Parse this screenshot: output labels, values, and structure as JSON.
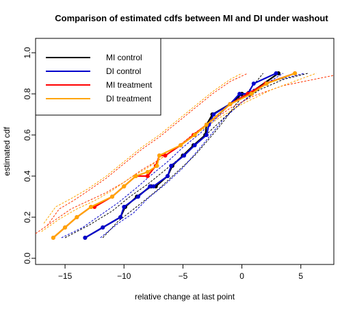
{
  "chart_data": {
    "type": "line",
    "title": "Comparison of estimated cdfs between MI and DI under washout",
    "xlabel": "relative change at last point",
    "ylabel": "estimated cdf",
    "xlim": [
      -17.5,
      7.8
    ],
    "ylim": [
      -0.03,
      1.07
    ],
    "xticks": [
      -15,
      -10,
      -5,
      0,
      5
    ],
    "xtick_labels": [
      "−15",
      "−10",
      "−5",
      "0",
      "5"
    ],
    "yticks": [
      0.0,
      0.2,
      0.4,
      0.6,
      0.8,
      1.0
    ],
    "ytick_labels": [
      "0.0",
      "0.2",
      "0.4",
      "0.6",
      "0.8",
      "1.0"
    ],
    "grid": false,
    "legend": "top-left",
    "series": [
      {
        "name": "MI control",
        "color": "#000000",
        "style": "solid-points",
        "x": [
          -13.3,
          -11.8,
          -10.3,
          -9.9,
          -8.9,
          -7.7,
          -7.3,
          -6.3,
          -5.9,
          -5.0,
          -4.1,
          -3.1,
          -3.0,
          -2.5,
          -1.0,
          0.0,
          0.6,
          3.1
        ],
        "y": [
          0.1,
          0.15,
          0.2,
          0.25,
          0.3,
          0.35,
          0.35,
          0.4,
          0.45,
          0.5,
          0.55,
          0.6,
          0.65,
          0.7,
          0.75,
          0.8,
          0.8,
          0.9
        ]
      },
      {
        "name": "DI control",
        "color": "#0000cc",
        "style": "solid-points",
        "x": [
          -13.3,
          -11.8,
          -10.3,
          -10.0,
          -8.8,
          -7.8,
          -7.5,
          -6.3,
          -6.0,
          -4.9,
          -4.0,
          -3.0,
          -2.8,
          -2.4,
          -1.0,
          -0.2,
          0.5,
          1.0,
          2.9
        ],
        "y": [
          0.1,
          0.15,
          0.2,
          0.25,
          0.3,
          0.35,
          0.35,
          0.4,
          0.45,
          0.5,
          0.55,
          0.6,
          0.65,
          0.7,
          0.75,
          0.8,
          0.8,
          0.85,
          0.9
        ]
      },
      {
        "name": "MI treatment",
        "color": "#ff0000",
        "style": "solid-points",
        "x": [
          -16.0,
          -15.0,
          -14.0,
          -12.8,
          -12.5,
          -11.0,
          -10.0,
          -9.0,
          -8.0,
          -7.3,
          -7.0,
          -6.5,
          -5.2,
          -4.1,
          -3.0,
          -1.0,
          0.5,
          2.0,
          4.5
        ],
        "y": [
          0.1,
          0.15,
          0.2,
          0.25,
          0.25,
          0.3,
          0.35,
          0.4,
          0.4,
          0.45,
          0.5,
          0.5,
          0.55,
          0.6,
          0.65,
          0.75,
          0.8,
          0.85,
          0.9
        ]
      },
      {
        "name": "DI treatment",
        "color": "#ffa500",
        "style": "solid-points",
        "x": [
          -16.0,
          -15.0,
          -14.0,
          -12.8,
          -11.0,
          -10.0,
          -9.0,
          -8.0,
          -7.2,
          -7.0,
          -5.2,
          -4.0,
          -3.0,
          -1.0,
          0.8,
          2.1,
          4.5
        ],
        "y": [
          0.1,
          0.15,
          0.2,
          0.25,
          0.3,
          0.35,
          0.4,
          0.42,
          0.45,
          0.5,
          0.55,
          0.6,
          0.65,
          0.75,
          0.8,
          0.85,
          0.9
        ]
      },
      {
        "color": "#000000",
        "style": "dashed",
        "x": [
          -15.0,
          -13.0,
          -11.0,
          -9.5,
          -8.0,
          -6.5,
          -5.0,
          -3.8,
          -2.5,
          -1.2,
          0.0,
          1.5,
          3.5,
          5.6
        ],
        "y": [
          0.1,
          0.16,
          0.23,
          0.3,
          0.36,
          0.43,
          0.5,
          0.56,
          0.63,
          0.7,
          0.76,
          0.82,
          0.87,
          0.9
        ]
      },
      {
        "color": "#000000",
        "style": "dashed",
        "x": [
          -11.8,
          -10.5,
          -8.5,
          -7.0,
          -5.5,
          -4.0,
          -2.5,
          -1.5,
          -0.5,
          0.8,
          1.8
        ],
        "y": [
          0.1,
          0.18,
          0.27,
          0.34,
          0.42,
          0.5,
          0.6,
          0.67,
          0.75,
          0.83,
          0.9
        ]
      },
      {
        "color": "#0000cc",
        "style": "dashed",
        "x": [
          -15.3,
          -13.5,
          -12.0,
          -10.5,
          -9.0,
          -7.8,
          -6.3,
          -5.0,
          -3.5,
          -2.2,
          -1.0,
          0.5,
          2.5,
          5.3
        ],
        "y": [
          0.1,
          0.15,
          0.21,
          0.27,
          0.34,
          0.4,
          0.47,
          0.54,
          0.61,
          0.68,
          0.75,
          0.81,
          0.86,
          0.9
        ]
      },
      {
        "color": "#0000cc",
        "style": "dashed",
        "x": [
          -12.0,
          -10.5,
          -9.2,
          -8.0,
          -6.5,
          -5.0,
          -3.8,
          -2.5,
          -1.5,
          0.0,
          1.5,
          3.5
        ],
        "y": [
          0.1,
          0.17,
          0.22,
          0.29,
          0.36,
          0.44,
          0.52,
          0.61,
          0.68,
          0.76,
          0.83,
          0.9
        ]
      },
      {
        "color": "#ff3300",
        "style": "dashed",
        "x": [
          -17.5,
          -16.0,
          -14.5,
          -13.0,
          -11.5,
          -10.0,
          -8.5,
          -7.0,
          -5.5,
          -4.0,
          -2.5,
          -1.0,
          1.0,
          3.5,
          7.8
        ],
        "y": [
          0.12,
          0.18,
          0.24,
          0.28,
          0.32,
          0.37,
          0.43,
          0.48,
          0.54,
          0.61,
          0.67,
          0.73,
          0.79,
          0.84,
          0.89
        ]
      },
      {
        "color": "#ff3300",
        "style": "dashed",
        "x": [
          -16.5,
          -15.5,
          -14.3,
          -13.0,
          -11.5,
          -10.0,
          -8.5,
          -7.0,
          -5.5,
          -4.0,
          -2.5,
          -1.0,
          0.5
        ],
        "y": [
          0.16,
          0.24,
          0.28,
          0.33,
          0.39,
          0.46,
          0.53,
          0.59,
          0.66,
          0.73,
          0.8,
          0.86,
          0.9
        ]
      },
      {
        "color": "#ffa500",
        "style": "dashed",
        "x": [
          -17.0,
          -15.5,
          -14.0,
          -12.5,
          -11.0,
          -9.5,
          -8.0,
          -6.5,
          -5.0,
          -3.5,
          -2.0,
          0.0,
          2.5,
          6.3
        ],
        "y": [
          0.13,
          0.19,
          0.24,
          0.28,
          0.33,
          0.39,
          0.44,
          0.5,
          0.56,
          0.62,
          0.68,
          0.75,
          0.82,
          0.9
        ]
      },
      {
        "color": "#ffa500",
        "style": "dashed",
        "x": [
          -16.8,
          -15.8,
          -14.5,
          -13.0,
          -11.5,
          -10.0,
          -8.5,
          -7.0,
          -5.5,
          -4.0,
          -2.5,
          -1.0,
          0.0
        ],
        "y": [
          0.17,
          0.25,
          0.29,
          0.34,
          0.4,
          0.47,
          0.54,
          0.6,
          0.67,
          0.74,
          0.81,
          0.87,
          0.9
        ]
      }
    ]
  }
}
